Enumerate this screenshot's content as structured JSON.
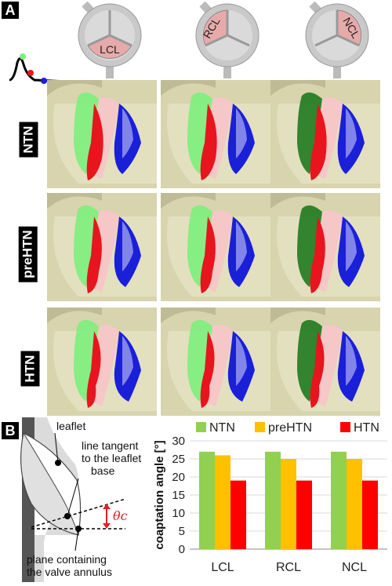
{
  "panels": {
    "a": "A",
    "b": "B"
  },
  "valves": [
    {
      "label": "LCL"
    },
    {
      "label": "RCL"
    },
    {
      "label": "NCL"
    }
  ],
  "rows": [
    "NTN",
    "preHTN",
    "HTN"
  ],
  "schematic": {
    "leaflet": "leaflet",
    "tangent": "line tangent to the leaflet base",
    "tangent_lines": [
      "line tangent",
      "to the leaflet",
      "base"
    ],
    "plane_lines": [
      "plane containing",
      "the valve annulus"
    ],
    "angle": "θc"
  },
  "colors": {
    "green": "#92d050",
    "yellow": "#ffc000",
    "red": "#ff0000",
    "leaflet_green": "#7cf07c",
    "leaflet_dark_green": "#1e7a1e",
    "leaflet_red": "#e8141e",
    "leaflet_pink": "#f5c7c7",
    "leaflet_blue": "#1a20d8",
    "bg_tan": "#d8d4ae"
  },
  "chart_data": {
    "type": "bar",
    "categories": [
      "LCL",
      "RCL",
      "NCL"
    ],
    "series": [
      {
        "name": "NTN",
        "values": [
          27,
          27,
          27
        ]
      },
      {
        "name": "preHTN",
        "values": [
          26,
          25,
          25
        ]
      },
      {
        "name": "HTN",
        "values": [
          19,
          19,
          19
        ]
      }
    ],
    "ylabel": "coaptation angle [°]",
    "ylim": [
      0,
      30
    ],
    "yticks": [
      0,
      5,
      10,
      15,
      20,
      25,
      30
    ],
    "legend": "top",
    "grid": true
  }
}
